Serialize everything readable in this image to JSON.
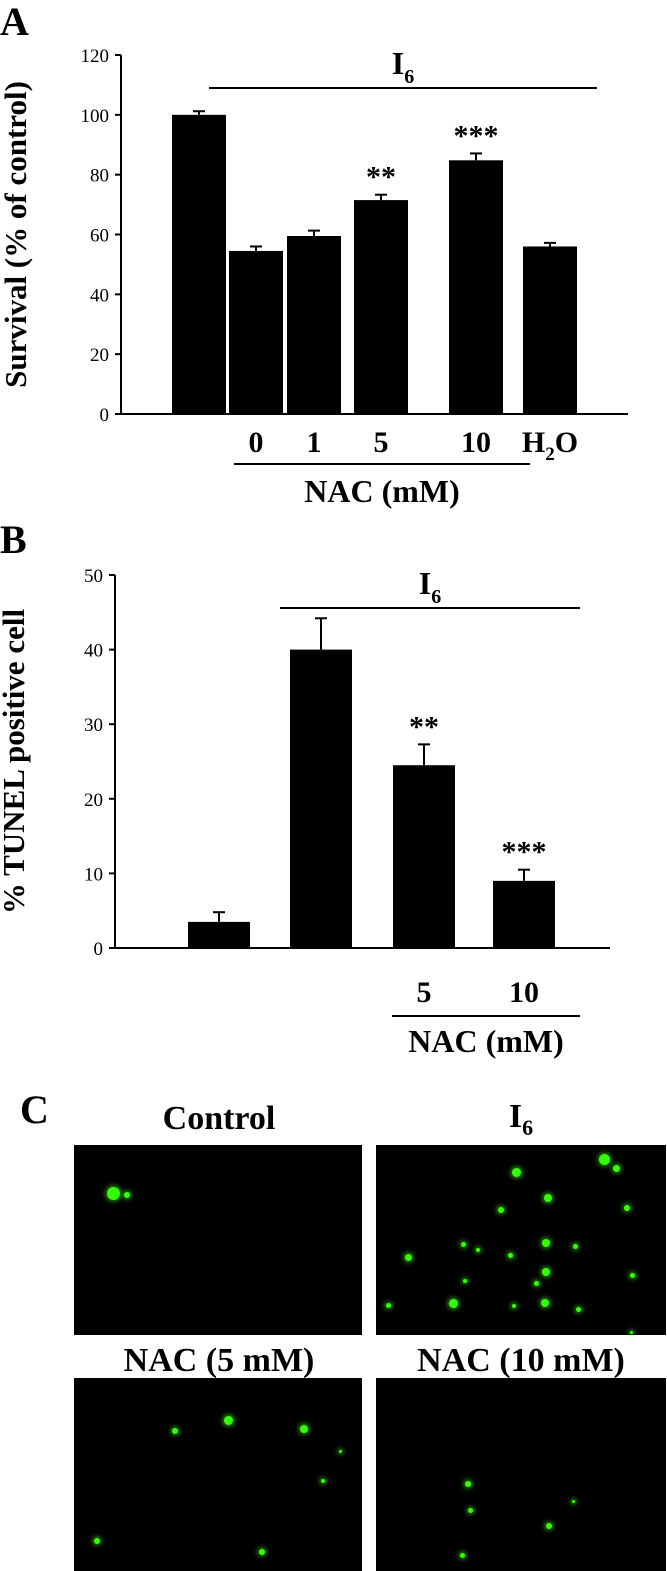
{
  "panels": {
    "A": {
      "letter": "A",
      "bracket_label_main": "I",
      "bracket_label_sub": "6",
      "nac_label": "NAC (mM)",
      "x_labels": [
        "",
        "0",
        "1",
        "5",
        "10",
        "H2O"
      ],
      "h2o_label": {
        "main": "H",
        "sub": "2",
        "tail": "O"
      },
      "yticks": [
        "0",
        "20",
        "40",
        "60",
        "80",
        "100",
        "120"
      ]
    },
    "B": {
      "letter": "B",
      "bracket_label_main": "I",
      "bracket_label_sub": "6",
      "nac_label": "NAC (mM)",
      "x_labels": [
        "",
        "",
        "5",
        "10"
      ],
      "yticks": [
        "0",
        "10",
        "20",
        "30",
        "40",
        "50"
      ]
    },
    "C": {
      "letter": "C",
      "labels": {
        "control": "Control",
        "i6_main": "I",
        "i6_sub": "6",
        "nac5": "NAC (5 mM)",
        "nac10": "NAC (10 mM)"
      },
      "fluorescence_color": "#33ff00"
    }
  },
  "chart_data": [
    {
      "type": "bar",
      "panel": "A",
      "ylabel": "Survival (% of control)",
      "xlabel": "NAC (mM)",
      "ylim": [
        0,
        120
      ],
      "categories": [
        "",
        "0",
        "1",
        "5",
        "10",
        "H2O"
      ],
      "values": [
        100,
        54.5,
        59.5,
        71.5,
        84.8,
        56
      ],
      "errors": [
        1.2,
        1.5,
        1.8,
        1.8,
        2.3,
        1.2
      ],
      "annotations": [
        "",
        "",
        "",
        "**",
        "***",
        ""
      ],
      "bracket": {
        "label": "I6",
        "from_index": 1,
        "to_index": 5
      },
      "bar_color": "#000000"
    },
    {
      "type": "bar",
      "panel": "B",
      "ylabel": "% TUNEL positive cell",
      "xlabel": "NAC (mM)",
      "ylim": [
        0,
        50
      ],
      "categories": [
        "",
        "",
        "5",
        "10"
      ],
      "values": [
        3.5,
        40,
        24.5,
        9
      ],
      "errors": [
        1.3,
        4.2,
        2.8,
        1.5
      ],
      "annotations": [
        "",
        "",
        "**",
        "***"
      ],
      "bracket": {
        "label": "I6",
        "from_index": 1,
        "to_index": 3
      },
      "bar_color": "#000000"
    }
  ]
}
